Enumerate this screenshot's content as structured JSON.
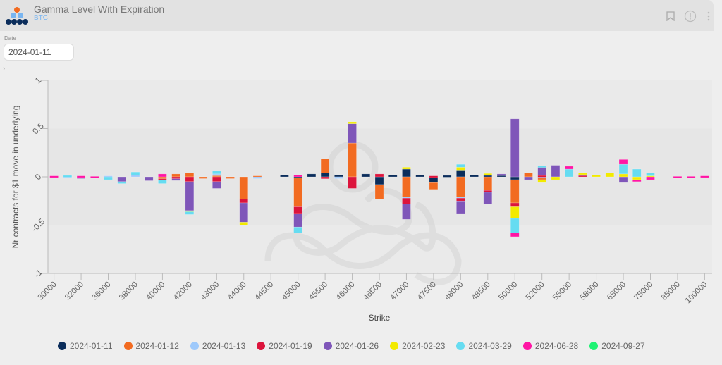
{
  "header": {
    "title": "Gamma Level With Expiration",
    "subtitle": "BTC",
    "icons": [
      "bookmark-icon",
      "info-icon",
      "more-vertical-icon"
    ]
  },
  "filters": {
    "date_label": "Date",
    "date_value": "2024-01-11",
    "expand_glyph": "›"
  },
  "colors": {
    "accent": "#79b5f0",
    "series": [
      "#0b2d5b",
      "#f26b21",
      "#9ec9fb",
      "#dc143c",
      "#7f56b9",
      "#f2ea00",
      "#66dcf1",
      "#ff16a5",
      "#1ff374"
    ]
  },
  "chart_data": {
    "type": "bar",
    "stacked": true,
    "title": "",
    "xlabel": "Strike",
    "ylabel": "Nr contracts for $1 move in underlying",
    "ylim": [
      -1,
      1
    ],
    "yticks": [
      1,
      0.5,
      0,
      -0.5,
      -1
    ],
    "ytick_labels": [
      "1",
      "0.5",
      "0",
      "-0.5",
      "-1"
    ],
    "grid": "horizontal-bands",
    "legend_position": "bottom",
    "categories": [
      "30000",
      "31000",
      "32000",
      "34000",
      "36000",
      "37000",
      "38000",
      "39000",
      "40000",
      "41000",
      "42000",
      "42500",
      "43000",
      "43500",
      "44000",
      "44250",
      "44500",
      "44750",
      "45000",
      "45250",
      "45500",
      "45750",
      "46000",
      "46250",
      "46500",
      "46750",
      "47000",
      "47250",
      "47500",
      "47750",
      "48000",
      "48250",
      "48500",
      "49000",
      "50000",
      "51000",
      "52000",
      "54000",
      "55000",
      "56000",
      "58000",
      "60000",
      "65000",
      "70000",
      "75000",
      "80000",
      "85000",
      "90000",
      "100000"
    ],
    "x_tick_labels": [
      "30000",
      "32000",
      "36000",
      "38000",
      "40000",
      "42000",
      "43000",
      "44000",
      "44500",
      "45000",
      "45500",
      "46000",
      "46500",
      "47000",
      "47500",
      "48000",
      "48500",
      "50000",
      "52000",
      "55000",
      "58000",
      "65000",
      "75000",
      "85000",
      "100000"
    ],
    "series": [
      {
        "name": "2024-01-11",
        "values": [
          0,
          0,
          0,
          0,
          0,
          0,
          0,
          0,
          0,
          0,
          0,
          0,
          0,
          0,
          0,
          0,
          0,
          0.02,
          -0.01,
          0.03,
          0.04,
          0.02,
          0,
          0.03,
          -0.08,
          0.02,
          0.08,
          0.02,
          -0.06,
          0.015,
          0.07,
          0.02,
          0.015,
          0.02,
          -0.03,
          0,
          0,
          0,
          0,
          0,
          0,
          0,
          0,
          0,
          0,
          0,
          0,
          0,
          0
        ]
      },
      {
        "name": "2024-01-12",
        "values": [
          0,
          0,
          0,
          0,
          0,
          0,
          0,
          0,
          -0.02,
          0.03,
          0.04,
          -0.005,
          0.02,
          -0.005,
          -0.23,
          0.01,
          0,
          0,
          -0.3,
          0,
          0.15,
          0,
          0.35,
          0,
          -0.15,
          0,
          -0.21,
          0,
          -0.07,
          0,
          -0.21,
          0,
          -0.14,
          0,
          -0.24,
          0.04,
          -0.03,
          0,
          0,
          0,
          0,
          0,
          0,
          0,
          0,
          0,
          0,
          0,
          0
        ]
      },
      {
        "name": "2024-01-13",
        "values": [
          0,
          0.01,
          0,
          0,
          0.01,
          0,
          0.02,
          0,
          0,
          0,
          0,
          0,
          0.01,
          0,
          0,
          -0.01,
          0,
          0,
          0,
          0,
          0,
          -0.005,
          0,
          0,
          0,
          0,
          -0.01,
          0,
          0,
          0,
          -0.01,
          0,
          0,
          0,
          0,
          0,
          0.005,
          0,
          0,
          0,
          0,
          0,
          0,
          0,
          0,
          0,
          0,
          0,
          0
        ]
      },
      {
        "name": "2024-01-19",
        "values": [
          0,
          0,
          0,
          0,
          0,
          0,
          0,
          0,
          -0.01,
          -0.02,
          -0.05,
          0,
          -0.05,
          0,
          -0.04,
          0,
          0,
          0,
          -0.07,
          0,
          -0.02,
          0,
          -0.12,
          0,
          0.03,
          0,
          -0.06,
          0,
          0.01,
          0,
          -0.03,
          0,
          -0.02,
          0,
          -0.04,
          0,
          0.01,
          0,
          0,
          0.02,
          0,
          0,
          0,
          0,
          0,
          0,
          0,
          0,
          0
        ]
      },
      {
        "name": "2024-01-26",
        "values": [
          0,
          0,
          -0.01,
          0,
          0,
          -0.05,
          0,
          -0.04,
          0,
          -0.01,
          -0.3,
          0,
          -0.07,
          0,
          -0.2,
          0,
          0,
          0,
          -0.14,
          0,
          0,
          0,
          0.2,
          0,
          0,
          0,
          -0.16,
          0,
          0,
          0,
          -0.13,
          0,
          -0.12,
          0.01,
          0.6,
          -0.03,
          0.09,
          0.12,
          0,
          0.01,
          0,
          0,
          -0.06,
          0,
          0,
          0,
          0,
          0,
          0
        ]
      },
      {
        "name": "2024-02-23",
        "values": [
          0,
          0,
          0,
          0,
          0,
          0,
          0,
          0,
          0,
          0,
          -0.01,
          0,
          0,
          0,
          -0.03,
          0,
          0,
          0,
          0,
          0,
          0,
          0,
          0.02,
          0,
          0,
          0,
          0.02,
          0,
          0,
          0,
          0.03,
          0,
          0.02,
          0,
          -0.12,
          0,
          -0.03,
          -0.03,
          0,
          0.01,
          0.02,
          0.04,
          0.03,
          -0.03,
          0.01,
          0,
          0,
          0,
          0
        ]
      },
      {
        "name": "2024-03-29",
        "values": [
          0,
          0.005,
          0,
          0,
          -0.03,
          -0.02,
          0.03,
          0,
          -0.04,
          0,
          -0.03,
          0,
          0.03,
          0,
          0,
          0,
          0,
          0,
          -0.06,
          0,
          0,
          0,
          0,
          0,
          0,
          0,
          0,
          0,
          0,
          0,
          0.03,
          0,
          0,
          0,
          -0.15,
          0,
          0.01,
          0,
          0.08,
          0,
          0,
          0,
          0.1,
          0.08,
          0.03,
          0,
          0,
          0,
          0
        ]
      },
      {
        "name": "2024-06-28",
        "values": [
          0.01,
          0,
          0.01,
          0.005,
          0,
          0,
          0,
          0,
          0.03,
          0,
          0,
          0,
          0,
          0,
          0,
          0,
          0,
          0,
          0.02,
          0,
          0,
          0,
          0,
          0,
          0,
          0,
          0,
          0,
          0,
          0,
          0,
          0,
          0,
          0,
          -0.04,
          0,
          0,
          0,
          0.03,
          0,
          0,
          0,
          0.05,
          -0.02,
          -0.03,
          0,
          0.005,
          0.005,
          0.01
        ]
      },
      {
        "name": "2024-09-27",
        "values": [
          0,
          0,
          0,
          0,
          0,
          0,
          0,
          0,
          0,
          0,
          0,
          0,
          0,
          0,
          0,
          0,
          0,
          0,
          0,
          0,
          0,
          0,
          0,
          0,
          0,
          0,
          0,
          0,
          0,
          0,
          0,
          0,
          0,
          0,
          0,
          0,
          0,
          0,
          0,
          0,
          0,
          0,
          0,
          0,
          0,
          0,
          0,
          0,
          0
        ]
      }
    ]
  }
}
